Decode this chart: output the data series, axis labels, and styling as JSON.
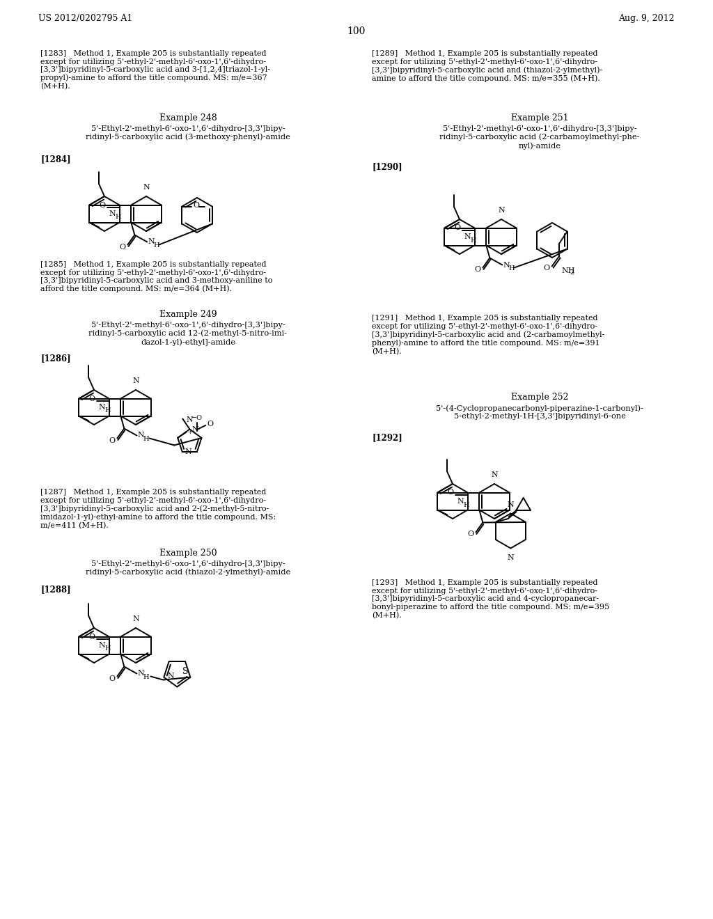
{
  "page_header_left": "US 2012/0202795 A1",
  "page_header_right": "Aug. 9, 2012",
  "page_number": "100",
  "bg": "#ffffff",
  "text_color": "#000000"
}
